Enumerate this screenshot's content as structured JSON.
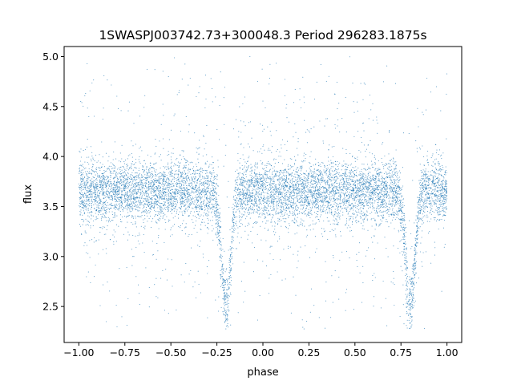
{
  "chart_data": {
    "type": "scatter",
    "title": "1SWASPJ003742.73+300048.3 Period 296283.1875s",
    "xlabel": "phase",
    "ylabel": "flux",
    "xlim": [
      -1.08,
      1.08
    ],
    "ylim": [
      2.14,
      5.1
    ],
    "xticks": [
      -1.0,
      -0.75,
      -0.5,
      -0.25,
      0.0,
      0.25,
      0.5,
      0.75,
      1.0
    ],
    "xtick_labels": [
      "−1.00",
      "−0.75",
      "−0.50",
      "−0.25",
      "0.00",
      "0.25",
      "0.50",
      "0.75",
      "1.00"
    ],
    "yticks": [
      2.5,
      3.0,
      3.5,
      4.0,
      4.5,
      5.0
    ],
    "ytick_labels": [
      "2.5",
      "3.0",
      "3.5",
      "4.0",
      "4.5",
      "5.0"
    ],
    "grid": false,
    "series": [
      {
        "color": "#1f77b4",
        "phase_range": [
          -1.0,
          1.0
        ],
        "baseline_flux": 3.65,
        "baseline_scatter": 0.15,
        "eclipses": [
          {
            "center_phase": -0.2,
            "min_flux": 2.5,
            "half_width_phase": 0.07
          },
          {
            "center_phase": 0.8,
            "min_flux": 2.5,
            "half_width_phase": 0.07
          }
        ],
        "flux_range": [
          2.27,
          5.0
        ]
      }
    ]
  }
}
